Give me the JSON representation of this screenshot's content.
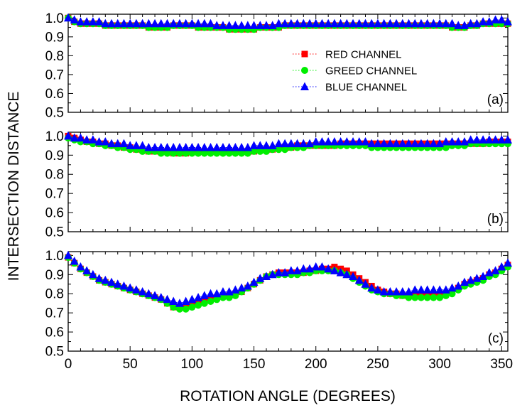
{
  "chart_data": {
    "type": "scatter",
    "xlabel": "ROTATION ANGLE (DEGREES)",
    "ylabel": "INTERSECTION DISTANCE",
    "xlim": [
      0,
      355
    ],
    "ylim": [
      0.5,
      1.02
    ],
    "xticks": [
      "0",
      "50",
      "100",
      "150",
      "200",
      "250",
      "300",
      "350"
    ],
    "xtick_values": [
      0,
      50,
      100,
      150,
      200,
      250,
      300,
      350
    ],
    "yticks": [
      "0.5",
      "0.6",
      "0.7",
      "0.8",
      "0.9",
      "1.0"
    ],
    "ytick_values": [
      0.5,
      0.6,
      0.7,
      0.8,
      0.9,
      1.0
    ],
    "grid": false,
    "legend_position": "inside top panel, upper-center-right",
    "x": [
      0,
      5,
      10,
      15,
      20,
      25,
      30,
      35,
      40,
      45,
      50,
      55,
      60,
      65,
      70,
      75,
      80,
      85,
      90,
      95,
      100,
      105,
      110,
      115,
      120,
      125,
      130,
      135,
      140,
      145,
      150,
      155,
      160,
      165,
      170,
      175,
      180,
      185,
      190,
      195,
      200,
      205,
      210,
      215,
      220,
      225,
      230,
      235,
      240,
      245,
      250,
      255,
      260,
      265,
      270,
      275,
      280,
      285,
      290,
      295,
      300,
      305,
      310,
      315,
      320,
      325,
      330,
      335,
      340,
      345,
      350,
      355
    ],
    "series_legend": [
      {
        "name": "RED CHANNEL",
        "color": "#ff0000",
        "marker": "square"
      },
      {
        "name": "GREED CHANNEL",
        "color": "#00ee00",
        "marker": "circle"
      },
      {
        "name": "BLUE CHANNEL",
        "color": "#0000ff",
        "marker": "triangle"
      }
    ],
    "panels": [
      {
        "label": "(a)",
        "series": [
          {
            "name": "RED CHANNEL",
            "values": [
              1.0,
              0.98,
              0.97,
              0.97,
              0.97,
              0.97,
              0.96,
              0.96,
              0.96,
              0.96,
              0.96,
              0.96,
              0.96,
              0.95,
              0.95,
              0.95,
              0.95,
              0.96,
              0.96,
              0.96,
              0.96,
              0.95,
              0.95,
              0.95,
              0.95,
              0.95,
              0.94,
              0.94,
              0.94,
              0.94,
              0.94,
              0.95,
              0.95,
              0.95,
              0.95,
              0.96,
              0.96,
              0.96,
              0.96,
              0.96,
              0.96,
              0.96,
              0.96,
              0.96,
              0.96,
              0.96,
              0.96,
              0.96,
              0.96,
              0.96,
              0.96,
              0.96,
              0.96,
              0.96,
              0.96,
              0.96,
              0.96,
              0.96,
              0.96,
              0.96,
              0.96,
              0.96,
              0.95,
              0.95,
              0.95,
              0.96,
              0.96,
              0.97,
              0.97,
              0.97,
              0.97,
              0.97
            ]
          },
          {
            "name": "GREED CHANNEL",
            "values": [
              1.0,
              0.98,
              0.97,
              0.97,
              0.97,
              0.97,
              0.96,
              0.96,
              0.96,
              0.96,
              0.96,
              0.96,
              0.96,
              0.95,
              0.95,
              0.95,
              0.95,
              0.96,
              0.96,
              0.96,
              0.96,
              0.95,
              0.95,
              0.95,
              0.95,
              0.95,
              0.94,
              0.94,
              0.94,
              0.94,
              0.94,
              0.95,
              0.95,
              0.95,
              0.95,
              0.96,
              0.96,
              0.96,
              0.96,
              0.96,
              0.96,
              0.96,
              0.96,
              0.96,
              0.96,
              0.96,
              0.96,
              0.96,
              0.96,
              0.96,
              0.96,
              0.96,
              0.96,
              0.96,
              0.96,
              0.96,
              0.96,
              0.96,
              0.96,
              0.96,
              0.96,
              0.96,
              0.95,
              0.95,
              0.95,
              0.96,
              0.96,
              0.97,
              0.97,
              0.97,
              0.97,
              0.97
            ]
          },
          {
            "name": "BLUE CHANNEL",
            "values": [
              1.0,
              0.99,
              0.98,
              0.98,
              0.98,
              0.98,
              0.97,
              0.97,
              0.97,
              0.97,
              0.97,
              0.97,
              0.97,
              0.97,
              0.97,
              0.97,
              0.97,
              0.97,
              0.97,
              0.97,
              0.97,
              0.97,
              0.97,
              0.97,
              0.96,
              0.96,
              0.96,
              0.96,
              0.96,
              0.96,
              0.96,
              0.96,
              0.96,
              0.96,
              0.97,
              0.97,
              0.97,
              0.97,
              0.97,
              0.97,
              0.97,
              0.97,
              0.97,
              0.97,
              0.97,
              0.97,
              0.97,
              0.97,
              0.97,
              0.97,
              0.97,
              0.97,
              0.97,
              0.97,
              0.97,
              0.97,
              0.97,
              0.97,
              0.97,
              0.97,
              0.97,
              0.97,
              0.97,
              0.96,
              0.96,
              0.97,
              0.97,
              0.98,
              0.98,
              0.99,
              0.99,
              0.98
            ]
          }
        ]
      },
      {
        "label": "(b)",
        "series": [
          {
            "name": "RED CHANNEL",
            "values": [
              1.0,
              0.99,
              0.98,
              0.97,
              0.97,
              0.96,
              0.96,
              0.95,
              0.95,
              0.94,
              0.94,
              0.93,
              0.93,
              0.92,
              0.92,
              0.92,
              0.92,
              0.91,
              0.91,
              0.91,
              0.92,
              0.92,
              0.92,
              0.92,
              0.92,
              0.92,
              0.92,
              0.92,
              0.92,
              0.92,
              0.92,
              0.93,
              0.93,
              0.93,
              0.94,
              0.94,
              0.94,
              0.95,
              0.95,
              0.95,
              0.95,
              0.95,
              0.95,
              0.95,
              0.96,
              0.96,
              0.96,
              0.96,
              0.96,
              0.96,
              0.96,
              0.96,
              0.96,
              0.96,
              0.96,
              0.96,
              0.96,
              0.96,
              0.96,
              0.96,
              0.96,
              0.96,
              0.96,
              0.96,
              0.96,
              0.96,
              0.96,
              0.96,
              0.97,
              0.97,
              0.97,
              0.97
            ]
          },
          {
            "name": "GREED CHANNEL",
            "values": [
              0.99,
              0.98,
              0.97,
              0.97,
              0.96,
              0.96,
              0.95,
              0.95,
              0.94,
              0.94,
              0.93,
              0.93,
              0.92,
              0.92,
              0.92,
              0.91,
              0.91,
              0.91,
              0.91,
              0.91,
              0.91,
              0.91,
              0.91,
              0.91,
              0.91,
              0.91,
              0.91,
              0.91,
              0.91,
              0.91,
              0.92,
              0.92,
              0.92,
              0.93,
              0.93,
              0.93,
              0.94,
              0.94,
              0.94,
              0.95,
              0.95,
              0.95,
              0.95,
              0.95,
              0.95,
              0.95,
              0.95,
              0.95,
              0.95,
              0.94,
              0.94,
              0.94,
              0.94,
              0.94,
              0.94,
              0.94,
              0.94,
              0.94,
              0.94,
              0.94,
              0.94,
              0.94,
              0.95,
              0.95,
              0.95,
              0.96,
              0.96,
              0.96,
              0.96,
              0.96,
              0.96,
              0.96
            ]
          },
          {
            "name": "BLUE CHANNEL",
            "values": [
              1.0,
              0.99,
              0.99,
              0.98,
              0.98,
              0.97,
              0.97,
              0.96,
              0.96,
              0.96,
              0.95,
              0.95,
              0.95,
              0.94,
              0.94,
              0.94,
              0.94,
              0.94,
              0.94,
              0.94,
              0.94,
              0.94,
              0.94,
              0.94,
              0.94,
              0.94,
              0.94,
              0.94,
              0.94,
              0.94,
              0.95,
              0.95,
              0.95,
              0.95,
              0.96,
              0.96,
              0.96,
              0.96,
              0.96,
              0.96,
              0.97,
              0.97,
              0.97,
              0.97,
              0.97,
              0.97,
              0.97,
              0.97,
              0.97,
              0.96,
              0.96,
              0.96,
              0.96,
              0.96,
              0.96,
              0.96,
              0.96,
              0.96,
              0.96,
              0.96,
              0.96,
              0.97,
              0.97,
              0.97,
              0.97,
              0.98,
              0.98,
              0.98,
              0.98,
              0.98,
              0.98,
              0.98
            ]
          }
        ]
      },
      {
        "label": "(c)",
        "series": [
          {
            "name": "RED CHANNEL",
            "values": [
              0.99,
              0.96,
              0.93,
              0.91,
              0.89,
              0.87,
              0.86,
              0.85,
              0.84,
              0.83,
              0.82,
              0.81,
              0.8,
              0.79,
              0.78,
              0.77,
              0.75,
              0.73,
              0.73,
              0.73,
              0.74,
              0.75,
              0.76,
              0.77,
              0.78,
              0.79,
              0.79,
              0.8,
              0.81,
              0.83,
              0.85,
              0.87,
              0.89,
              0.9,
              0.91,
              0.91,
              0.91,
              0.91,
              0.91,
              0.92,
              0.92,
              0.93,
              0.93,
              0.94,
              0.93,
              0.92,
              0.9,
              0.88,
              0.86,
              0.84,
              0.82,
              0.81,
              0.8,
              0.8,
              0.79,
              0.79,
              0.79,
              0.79,
              0.79,
              0.79,
              0.79,
              0.8,
              0.81,
              0.83,
              0.85,
              0.86,
              0.87,
              0.88,
              0.9,
              0.91,
              0.93,
              0.95
            ]
          },
          {
            "name": "GREED CHANNEL",
            "values": [
              0.99,
              0.96,
              0.93,
              0.91,
              0.89,
              0.87,
              0.86,
              0.85,
              0.84,
              0.83,
              0.82,
              0.81,
              0.8,
              0.79,
              0.78,
              0.77,
              0.75,
              0.73,
              0.72,
              0.72,
              0.73,
              0.74,
              0.75,
              0.76,
              0.77,
              0.78,
              0.78,
              0.79,
              0.81,
              0.83,
              0.85,
              0.87,
              0.89,
              0.9,
              0.9,
              0.9,
              0.9,
              0.9,
              0.91,
              0.91,
              0.92,
              0.92,
              0.92,
              0.92,
              0.91,
              0.9,
              0.88,
              0.86,
              0.84,
              0.82,
              0.81,
              0.8,
              0.8,
              0.79,
              0.79,
              0.78,
              0.78,
              0.78,
              0.78,
              0.78,
              0.78,
              0.79,
              0.8,
              0.82,
              0.84,
              0.85,
              0.86,
              0.87,
              0.89,
              0.9,
              0.92,
              0.94
            ]
          },
          {
            "name": "BLUE CHANNEL",
            "values": [
              1.0,
              0.97,
              0.94,
              0.92,
              0.9,
              0.88,
              0.87,
              0.86,
              0.85,
              0.84,
              0.83,
              0.82,
              0.81,
              0.8,
              0.79,
              0.78,
              0.77,
              0.76,
              0.75,
              0.76,
              0.77,
              0.78,
              0.79,
              0.8,
              0.8,
              0.81,
              0.81,
              0.82,
              0.83,
              0.84,
              0.86,
              0.88,
              0.89,
              0.9,
              0.91,
              0.91,
              0.92,
              0.92,
              0.93,
              0.93,
              0.94,
              0.94,
              0.93,
              0.92,
              0.91,
              0.9,
              0.89,
              0.87,
              0.85,
              0.83,
              0.82,
              0.81,
              0.81,
              0.81,
              0.81,
              0.81,
              0.82,
              0.82,
              0.82,
              0.82,
              0.82,
              0.82,
              0.83,
              0.84,
              0.86,
              0.87,
              0.88,
              0.89,
              0.91,
              0.92,
              0.94,
              0.96
            ]
          }
        ]
      }
    ]
  }
}
